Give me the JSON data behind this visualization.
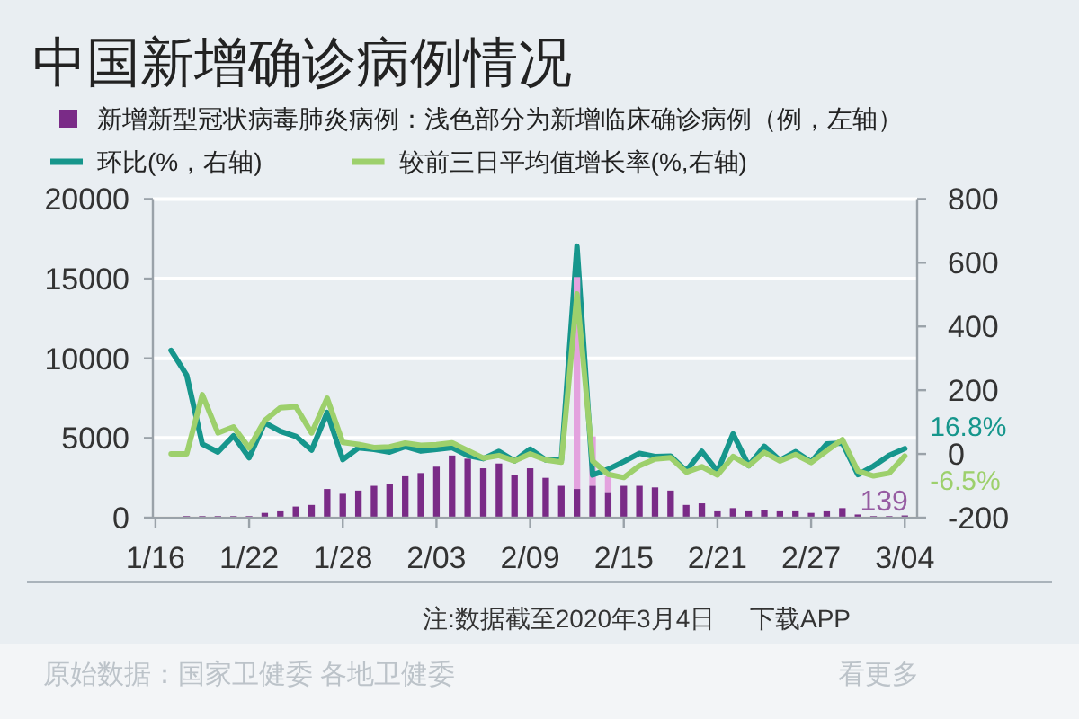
{
  "chart_data": {
    "type": "bar",
    "title": "中国新增确诊病例情况",
    "stacked": true,
    "x": [
      "2020-01-16",
      "2020-01-17",
      "2020-01-18",
      "2020-01-19",
      "2020-01-20",
      "2020-01-21",
      "2020-01-22",
      "2020-01-23",
      "2020-01-24",
      "2020-01-25",
      "2020-01-26",
      "2020-01-27",
      "2020-01-28",
      "2020-01-29",
      "2020-01-30",
      "2020-01-31",
      "2020-02-01",
      "2020-02-02",
      "2020-02-03",
      "2020-02-04",
      "2020-02-05",
      "2020-02-06",
      "2020-02-07",
      "2020-02-08",
      "2020-02-09",
      "2020-02-10",
      "2020-02-11",
      "2020-02-12",
      "2020-02-13",
      "2020-02-14",
      "2020-02-15",
      "2020-02-16",
      "2020-02-17",
      "2020-02-18",
      "2020-02-19",
      "2020-02-20",
      "2020-02-21",
      "2020-02-22",
      "2020-02-23",
      "2020-02-24",
      "2020-02-25",
      "2020-02-26",
      "2020-02-27",
      "2020-02-28",
      "2020-02-29",
      "2020-03-01",
      "2020-03-02",
      "2020-03-03",
      "2020-03-04"
    ],
    "series": [
      {
        "name": "新增新型冠状病毒肺炎病例：浅色部分为新增临床确诊病例（例，左轴）",
        "color": "#7a2b87",
        "values": [
          0,
          0,
          100,
          100,
          100,
          100,
          100,
          300,
          400,
          700,
          800,
          1800,
          1500,
          1700,
          2000,
          2100,
          2600,
          2800,
          3200,
          3900,
          3700,
          3100,
          3400,
          2700,
          3100,
          2500,
          2000,
          1800,
          2000,
          1600,
          2000,
          2000,
          1900,
          1700,
          800,
          900,
          400,
          600,
          400,
          500,
          400,
          400,
          300,
          400,
          600,
          200,
          100,
          100,
          139
        ],
        "value_labels": [
          null,
          null,
          null,
          null,
          null,
          null,
          null,
          null,
          null,
          null,
          null,
          null,
          null,
          null,
          null,
          null,
          null,
          null,
          null,
          null,
          null,
          null,
          null,
          null,
          null,
          null,
          null,
          null,
          null,
          null,
          null,
          null,
          null,
          null,
          null,
          null,
          null,
          null,
          null,
          null,
          null,
          null,
          null,
          null,
          null,
          null,
          null,
          null,
          "139"
        ]
      },
      {
        "color": "#e3a2de",
        "values": [
          null,
          null,
          null,
          null,
          null,
          null,
          null,
          null,
          null,
          null,
          null,
          null,
          null,
          null,
          null,
          null,
          null,
          null,
          null,
          null,
          null,
          null,
          null,
          null,
          null,
          null,
          null,
          13300,
          3100,
          1000,
          null,
          null,
          null,
          null,
          null,
          null,
          null,
          null,
          null,
          null,
          null,
          null,
          null,
          null,
          null,
          null,
          null,
          null,
          null
        ]
      },
      {
        "name": "环比(%，右轴)",
        "type": "line",
        "axis": "y2",
        "color": "#16968c",
        "values": [
          null,
          325,
          247,
          31,
          6,
          57,
          -12,
          98,
          71,
          55,
          12,
          130,
          -18,
          19,
          14,
          6,
          23,
          9,
          14,
          20,
          -5,
          -15,
          8,
          -22,
          15,
          -19,
          -19,
          652,
          -66,
          -48,
          -24,
          2,
          -8,
          -7,
          -53,
          8,
          -55,
          63,
          -37,
          24,
          -20,
          7,
          -25,
          31,
          34,
          -65,
          -38,
          -5,
          16.8
        ],
        "value_labels": [
          null,
          null,
          null,
          null,
          null,
          null,
          null,
          null,
          null,
          null,
          null,
          null,
          null,
          null,
          null,
          null,
          null,
          null,
          null,
          null,
          null,
          null,
          null,
          null,
          null,
          null,
          null,
          null,
          null,
          null,
          null,
          null,
          null,
          null,
          null,
          null,
          null,
          null,
          null,
          null,
          null,
          null,
          null,
          null,
          null,
          null,
          null,
          null,
          "16.8%"
        ]
      },
      {
        "name": "较前三日平均值增长率(%,右轴)",
        "type": "line",
        "axis": "y2",
        "color": "#9dd06c",
        "values": [
          null,
          0,
          0,
          186,
          66,
          85,
          19,
          105,
          145,
          148,
          66,
          175,
          36,
          30,
          20,
          22,
          34,
          27,
          29,
          35,
          11,
          -13,
          -5,
          -22,
          0,
          -19,
          -26,
          502,
          -22,
          -64,
          -74,
          -37,
          -16,
          -12,
          -57,
          -40,
          -66,
          -8,
          -37,
          5,
          -22,
          -2,
          -27,
          10,
          45,
          -54,
          -69,
          -60,
          -6.5
        ],
        "value_labels": [
          null,
          null,
          null,
          null,
          null,
          null,
          null,
          null,
          null,
          null,
          null,
          null,
          null,
          null,
          null,
          null,
          null,
          null,
          null,
          null,
          null,
          null,
          null,
          null,
          null,
          null,
          null,
          null,
          null,
          null,
          null,
          null,
          null,
          null,
          null,
          null,
          null,
          null,
          null,
          null,
          null,
          null,
          null,
          null,
          null,
          null,
          null,
          null,
          "-6.5%"
        ]
      }
    ],
    "xlim": [
      "2020-01-15T20:00",
      "2020-03-04T19:00"
    ],
    "xticks": [
      {
        "value": "2020-01-16",
        "label": "1/16"
      },
      {
        "value": "2020-01-22",
        "label": "1/22"
      },
      {
        "value": "2020-01-28",
        "label": "1/28"
      },
      {
        "value": "2020-02-03",
        "label": "2/03"
      },
      {
        "value": "2020-02-09",
        "label": "2/09"
      },
      {
        "value": "2020-02-15",
        "label": "2/15"
      },
      {
        "value": "2020-02-21",
        "label": "2/21"
      },
      {
        "value": "2020-02-27",
        "label": "2/27"
      },
      {
        "value": "2020-03-04",
        "label": "3/04"
      }
    ],
    "ylim": [
      0,
      20000
    ],
    "yticks": [
      0,
      5000,
      10000,
      15000,
      20000
    ],
    "y2lim": [
      -200,
      800
    ],
    "y2ticks": [
      -200,
      0,
      200,
      400,
      600,
      800
    ],
    "grid": "y",
    "legend": "top left",
    "annotations": [
      "注:数据截至2020年3月4日",
      "下载APP",
      "原始数据：国家卫健委 各地卫健委",
      "看更多"
    ]
  }
}
